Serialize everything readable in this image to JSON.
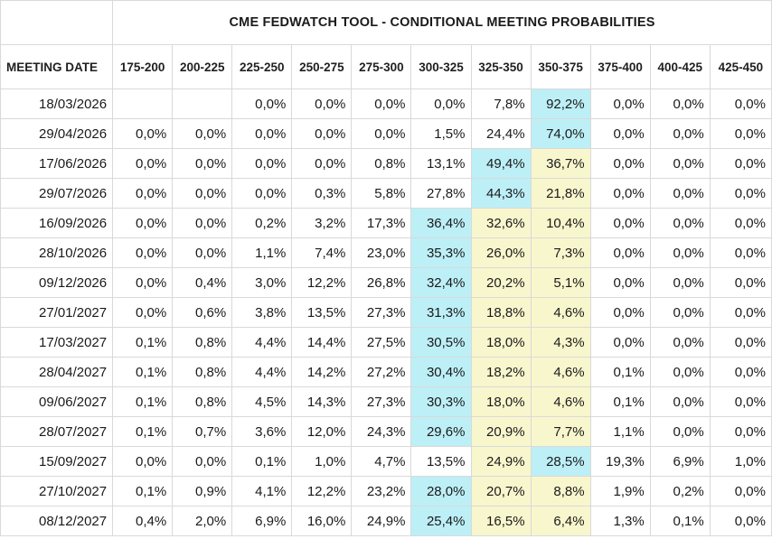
{
  "title": "CME FEDWATCH TOOL - CONDITIONAL MEETING PROBABILITIES",
  "header": {
    "meeting_date_label": "MEETING DATE",
    "ranges": [
      "175-200",
      "200-225",
      "225-250",
      "250-275",
      "275-300",
      "300-325",
      "325-350",
      "350-375",
      "375-400",
      "400-425",
      "425-450"
    ]
  },
  "highlight_colors": {
    "max": "#bdeff7",
    "current": "#f8f6cd"
  },
  "rows": [
    {
      "date": "18/03/2026",
      "values": [
        "",
        "",
        "0,0%",
        "0,0%",
        "0,0%",
        "0,0%",
        "7,8%",
        "92,2%",
        "0,0%",
        "0,0%",
        "0,0%"
      ],
      "highlight": {
        "7": "blue"
      }
    },
    {
      "date": "29/04/2026",
      "values": [
        "0,0%",
        "0,0%",
        "0,0%",
        "0,0%",
        "0,0%",
        "1,5%",
        "24,4%",
        "74,0%",
        "0,0%",
        "0,0%",
        "0,0%"
      ],
      "highlight": {
        "7": "blue"
      }
    },
    {
      "date": "17/06/2026",
      "values": [
        "0,0%",
        "0,0%",
        "0,0%",
        "0,0%",
        "0,8%",
        "13,1%",
        "49,4%",
        "36,7%",
        "0,0%",
        "0,0%",
        "0,0%"
      ],
      "highlight": {
        "6": "blue",
        "7": "yellow"
      }
    },
    {
      "date": "29/07/2026",
      "values": [
        "0,0%",
        "0,0%",
        "0,0%",
        "0,3%",
        "5,8%",
        "27,8%",
        "44,3%",
        "21,8%",
        "0,0%",
        "0,0%",
        "0,0%"
      ],
      "highlight": {
        "6": "blue",
        "7": "yellow"
      }
    },
    {
      "date": "16/09/2026",
      "values": [
        "0,0%",
        "0,0%",
        "0,2%",
        "3,2%",
        "17,3%",
        "36,4%",
        "32,6%",
        "10,4%",
        "0,0%",
        "0,0%",
        "0,0%"
      ],
      "highlight": {
        "5": "blue",
        "6": "yellow",
        "7": "yellow"
      }
    },
    {
      "date": "28/10/2026",
      "values": [
        "0,0%",
        "0,0%",
        "1,1%",
        "7,4%",
        "23,0%",
        "35,3%",
        "26,0%",
        "7,3%",
        "0,0%",
        "0,0%",
        "0,0%"
      ],
      "highlight": {
        "5": "blue",
        "6": "yellow",
        "7": "yellow"
      }
    },
    {
      "date": "09/12/2026",
      "values": [
        "0,0%",
        "0,4%",
        "3,0%",
        "12,2%",
        "26,8%",
        "32,4%",
        "20,2%",
        "5,1%",
        "0,0%",
        "0,0%",
        "0,0%"
      ],
      "highlight": {
        "5": "blue",
        "6": "yellow",
        "7": "yellow"
      }
    },
    {
      "date": "27/01/2027",
      "values": [
        "0,0%",
        "0,6%",
        "3,8%",
        "13,5%",
        "27,3%",
        "31,3%",
        "18,8%",
        "4,6%",
        "0,0%",
        "0,0%",
        "0,0%"
      ],
      "highlight": {
        "5": "blue",
        "6": "yellow",
        "7": "yellow"
      }
    },
    {
      "date": "17/03/2027",
      "values": [
        "0,1%",
        "0,8%",
        "4,4%",
        "14,4%",
        "27,5%",
        "30,5%",
        "18,0%",
        "4,3%",
        "0,0%",
        "0,0%",
        "0,0%"
      ],
      "highlight": {
        "5": "blue",
        "6": "yellow",
        "7": "yellow"
      }
    },
    {
      "date": "28/04/2027",
      "values": [
        "0,1%",
        "0,8%",
        "4,4%",
        "14,2%",
        "27,2%",
        "30,4%",
        "18,2%",
        "4,6%",
        "0,1%",
        "0,0%",
        "0,0%"
      ],
      "highlight": {
        "5": "blue",
        "6": "yellow",
        "7": "yellow"
      }
    },
    {
      "date": "09/06/2027",
      "values": [
        "0,1%",
        "0,8%",
        "4,5%",
        "14,3%",
        "27,3%",
        "30,3%",
        "18,0%",
        "4,6%",
        "0,1%",
        "0,0%",
        "0,0%"
      ],
      "highlight": {
        "5": "blue",
        "6": "yellow",
        "7": "yellow"
      }
    },
    {
      "date": "28/07/2027",
      "values": [
        "0,1%",
        "0,7%",
        "3,6%",
        "12,0%",
        "24,3%",
        "29,6%",
        "20,9%",
        "7,7%",
        "1,1%",
        "0,0%",
        "0,0%"
      ],
      "highlight": {
        "5": "blue",
        "6": "yellow",
        "7": "yellow"
      }
    },
    {
      "date": "15/09/2027",
      "values": [
        "0,0%",
        "0,0%",
        "0,1%",
        "1,0%",
        "4,7%",
        "13,5%",
        "24,9%",
        "28,5%",
        "19,3%",
        "6,9%",
        "1,0%"
      ],
      "highlight": {
        "6": "yellow",
        "7": "blue"
      }
    },
    {
      "date": "27/10/2027",
      "values": [
        "0,1%",
        "0,9%",
        "4,1%",
        "12,2%",
        "23,2%",
        "28,0%",
        "20,7%",
        "8,8%",
        "1,9%",
        "0,2%",
        "0,0%"
      ],
      "highlight": {
        "5": "blue",
        "6": "yellow",
        "7": "yellow"
      }
    },
    {
      "date": "08/12/2027",
      "values": [
        "0,4%",
        "2,0%",
        "6,9%",
        "16,0%",
        "24,9%",
        "25,4%",
        "16,5%",
        "6,4%",
        "1,3%",
        "0,1%",
        "0,0%"
      ],
      "highlight": {
        "5": "blue",
        "6": "yellow",
        "7": "yellow"
      }
    }
  ]
}
